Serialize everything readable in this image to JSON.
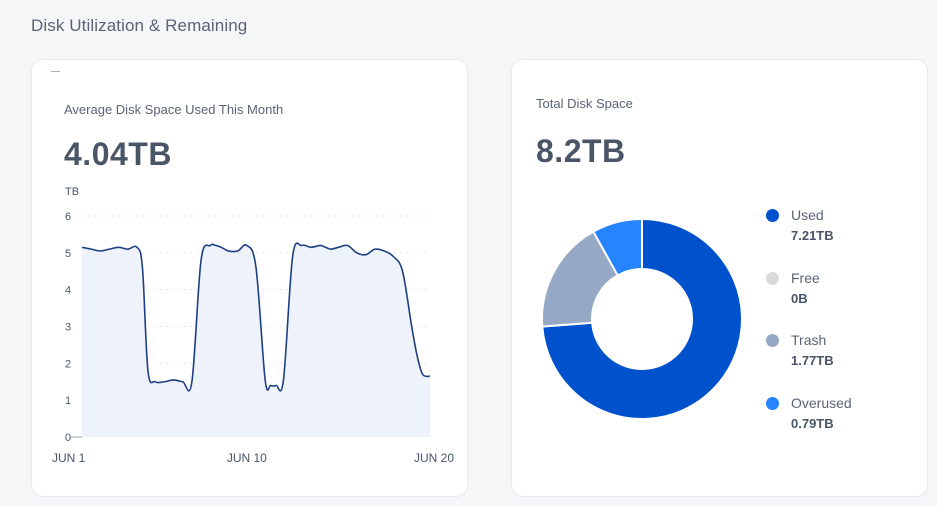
{
  "section_title": "Disk Utilization & Remaining",
  "left_card": {
    "label": "Average Disk Space Used This Month",
    "value": "4.04TB"
  },
  "right_card": {
    "label": "Total Disk Space",
    "value": "8.2TB"
  },
  "chart_data": [
    {
      "type": "area",
      "title": "",
      "ylabel": "TB",
      "ylim": [
        0,
        6
      ],
      "y_ticks": [
        "0",
        "1",
        "2",
        "3",
        "4",
        "5",
        "6"
      ],
      "x_ticks": [
        {
          "day": 1,
          "label": "JUN 1"
        },
        {
          "day": 10,
          "label": "JUN 10"
        },
        {
          "day": 20,
          "label": "JUN 20"
        }
      ],
      "xlim": [
        1,
        20
      ],
      "color": "#1e3f82",
      "fill": "#eef2fb",
      "series": [
        {
          "x": [
            1,
            1.5,
            2,
            2.5,
            3,
            3.5,
            4,
            4.3,
            4.6,
            5,
            5.5,
            6,
            6.5,
            7,
            7.5,
            8,
            8.3,
            8.6,
            9,
            9.5,
            10,
            10.5,
            11,
            11.3,
            11.6,
            12,
            12.5,
            13,
            13.5,
            14,
            14.3,
            14.6,
            15,
            15.5,
            16,
            16.5,
            17,
            17.5,
            18,
            18.5,
            19,
            19.3,
            19.6,
            20
          ],
          "y": [
            5.15,
            5.1,
            5.05,
            5.1,
            5.15,
            5.1,
            5.15,
            4.6,
            1.8,
            1.5,
            1.5,
            1.55,
            1.5,
            1.5,
            4.8,
            5.2,
            5.2,
            5.15,
            5.05,
            5.05,
            5.2,
            4.6,
            1.55,
            1.4,
            1.4,
            1.55,
            4.9,
            5.2,
            5.15,
            5.2,
            5.15,
            5.1,
            5.15,
            5.2,
            5.0,
            4.95,
            5.1,
            5.05,
            4.9,
            4.5,
            3.0,
            2.2,
            1.7,
            1.65
          ]
        }
      ]
    },
    {
      "type": "pie",
      "title": "",
      "categories": [
        "Used",
        "Free",
        "Trash",
        "Overused"
      ],
      "value_labels": [
        "7.21TB",
        "0B",
        "1.77TB",
        "0.79TB"
      ],
      "values": [
        7.21,
        0,
        1.77,
        0.79
      ],
      "colors": [
        "#0052cc",
        "#d9d9d9",
        "#95a8c4",
        "#2684ff"
      ],
      "legend": "right"
    }
  ]
}
